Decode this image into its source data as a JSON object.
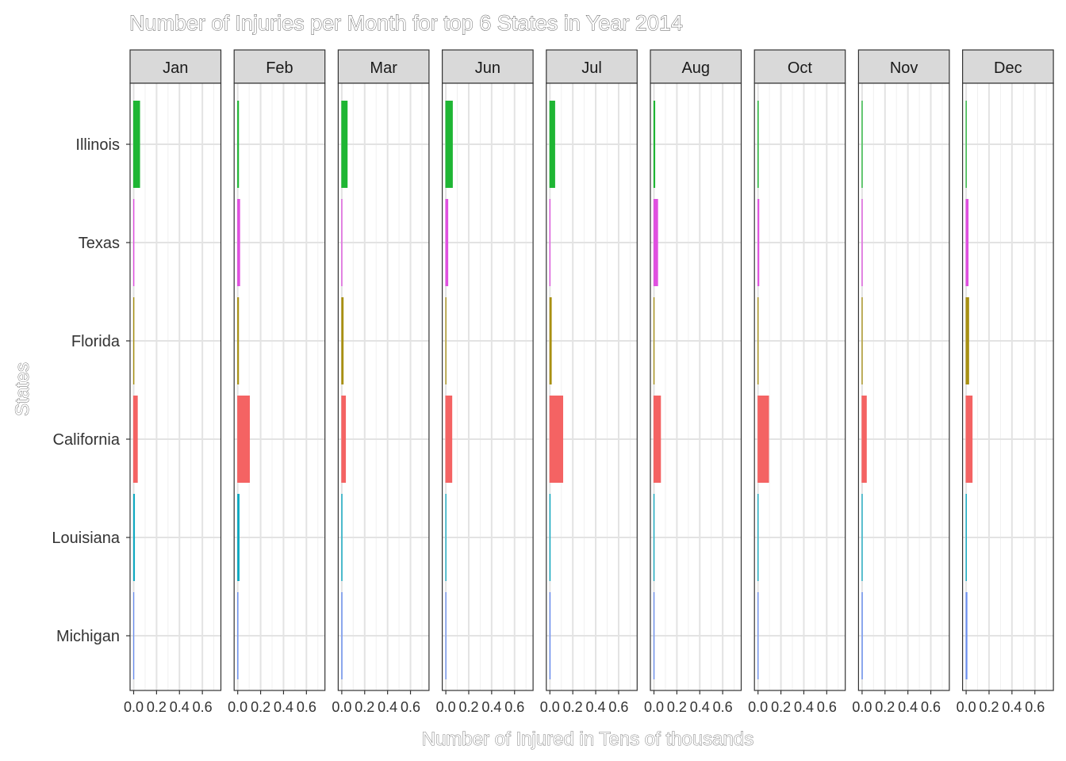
{
  "chart_data": {
    "type": "bar",
    "orientation": "horizontal",
    "title": "Number of Injuries per Month for top 6 States in Year 2014",
    "xlabel": "Number of Injured in Tens of thousands",
    "ylabel": "States",
    "xlim": [
      0,
      0.75
    ],
    "xticks": [
      "0.0",
      "0.2",
      "0.4",
      "0.6"
    ],
    "grid": true,
    "legend": "none",
    "categories": [
      "Illinois",
      "Texas",
      "Florida",
      "California",
      "Louisiana",
      "Michigan"
    ],
    "colors": {
      "Illinois": "#1fb634",
      "Texas": "#e050e0",
      "Florida": "#a89012",
      "California": "#f46363",
      "Louisiana": "#11aac2",
      "Michigan": "#6a8ff0"
    },
    "facets": [
      {
        "label": "Jan",
        "values": [
          0.06,
          0.01,
          0.01,
          0.04,
          0.015,
          0.0
        ]
      },
      {
        "label": "Feb",
        "values": [
          0.015,
          0.025,
          0.015,
          0.11,
          0.02,
          0.01
        ]
      },
      {
        "label": "Mar",
        "values": [
          0.055,
          0.0,
          0.02,
          0.04,
          0.01,
          0.01
        ]
      },
      {
        "label": "Jun",
        "values": [
          0.065,
          0.025,
          0.008,
          0.06,
          0.0,
          0.0
        ]
      },
      {
        "label": "Jul",
        "values": [
          0.05,
          0.0,
          0.02,
          0.12,
          0.01,
          0.01
        ]
      },
      {
        "label": "Aug",
        "values": [
          0.015,
          0.04,
          0.0,
          0.065,
          0.0,
          0.005
        ]
      },
      {
        "label": "Oct",
        "values": [
          0.01,
          0.015,
          0.008,
          0.1,
          0.0,
          0.0
        ]
      },
      {
        "label": "Nov",
        "values": [
          0.0,
          0.0,
          0.008,
          0.045,
          0.0,
          0.01
        ]
      },
      {
        "label": "Dec",
        "values": [
          0.0,
          0.025,
          0.03,
          0.06,
          0.01,
          0.015
        ]
      }
    ]
  }
}
